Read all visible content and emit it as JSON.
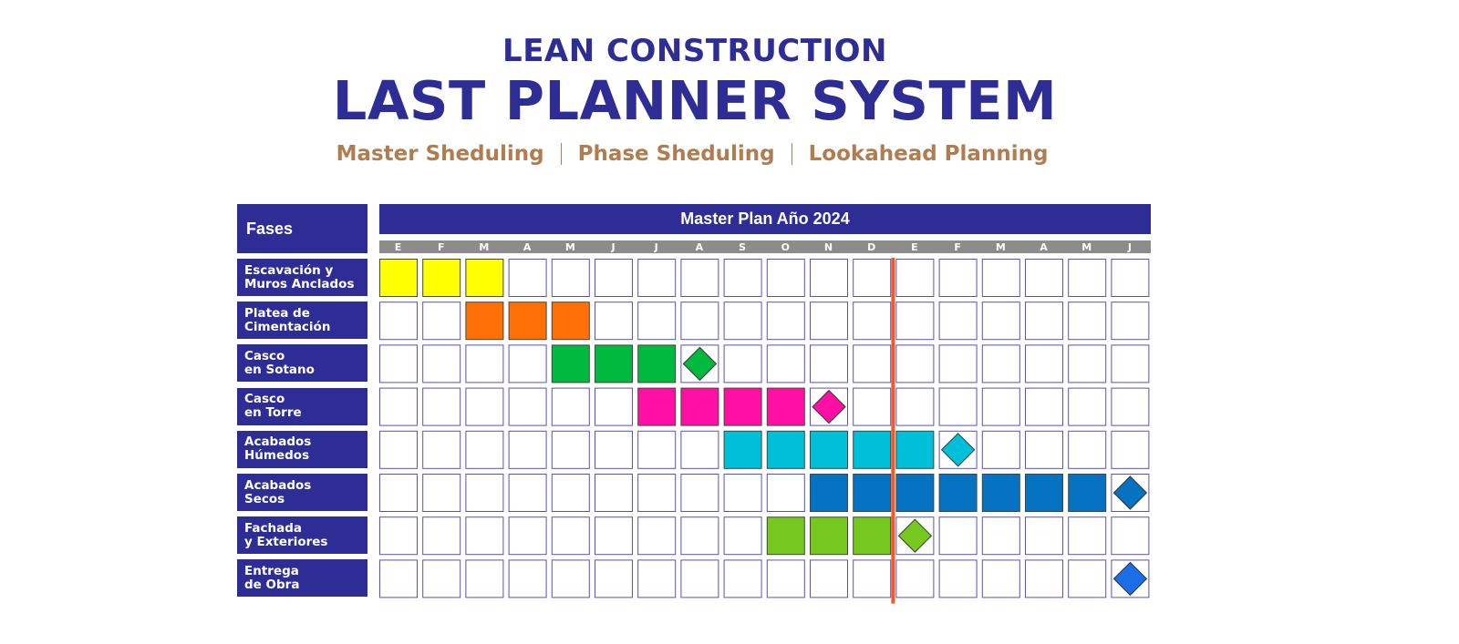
{
  "header": {
    "line1": "LEAN CONSTRUCTION",
    "line2": "LAST PLANNER SYSTEM",
    "subtitles": [
      "Master Sheduling",
      "Phase Sheduling",
      "Lookahead Planning"
    ]
  },
  "phases_header": "Fases",
  "plan_title": "Master Plan Año 2024",
  "months": [
    "E",
    "F",
    "M",
    "A",
    "M",
    "J",
    "J",
    "A",
    "S",
    "O",
    "N",
    "D",
    "E",
    "F",
    "M",
    "A",
    "M",
    "J"
  ],
  "phases": [
    {
      "label": [
        "Escavación y",
        "Muros Anclados"
      ],
      "color": "#ffff00",
      "start": 0,
      "end": 2,
      "milestone": null
    },
    {
      "label": [
        "Platea de",
        "Cimentación"
      ],
      "color": "#ff7106",
      "start": 2,
      "end": 4,
      "milestone": null
    },
    {
      "label": [
        "Casco",
        "en Sotano"
      ],
      "color": "#00b93f",
      "start": 4,
      "end": 6,
      "milestone": 7
    },
    {
      "label": [
        "Casco",
        "en Torre"
      ],
      "color": "#ff0fa3",
      "start": 6,
      "end": 9,
      "milestone": 10
    },
    {
      "label": [
        "Acabados",
        "Húmedos"
      ],
      "color": "#00bfd9",
      "start": 8,
      "end": 12,
      "milestone": 13
    },
    {
      "label": [
        "Acabados",
        "Secos"
      ],
      "color": "#0672c2",
      "start": 10,
      "end": 16,
      "milestone": 17
    },
    {
      "label": [
        "Fachada",
        "y Exteriores"
      ],
      "color": "#77c81e",
      "start": 9,
      "end": 11,
      "milestone": 12
    },
    {
      "label": [
        "Entrega",
        "de Obra"
      ],
      "color": "#1a6ee8",
      "start": null,
      "end": null,
      "milestone": 17
    }
  ],
  "colors": {
    "navy": "#2e2d96",
    "month_bar": "#8c8c8c",
    "cell_border": "#5a52b0",
    "today_line": "#f05a28",
    "subtitle": "#b07d50"
  },
  "today_after_month_index": 11
}
